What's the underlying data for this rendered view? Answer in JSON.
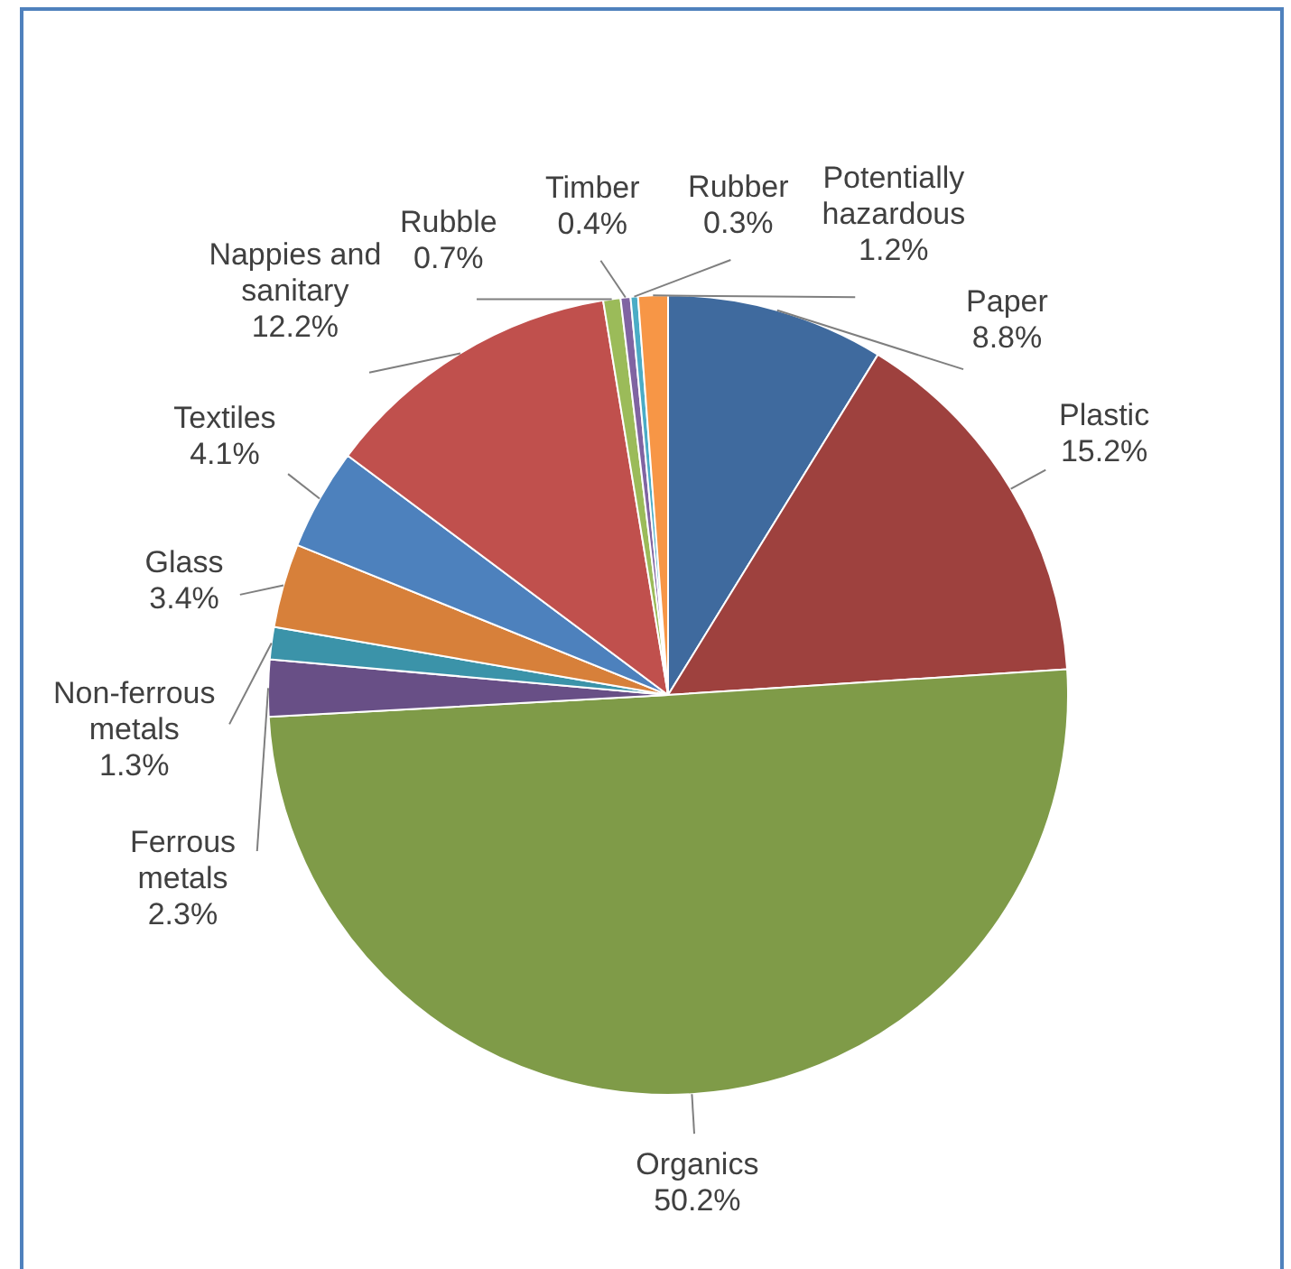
{
  "chart_data": {
    "type": "pie",
    "categories": [
      "Paper",
      "Plastic",
      "Organics",
      "Ferrous metals",
      "Non-ferrous metals",
      "Glass",
      "Textiles",
      "Nappies and sanitary",
      "Rubble",
      "Timber",
      "Rubber",
      "Potentially hazardous"
    ],
    "values": [
      8.8,
      15.2,
      50.2,
      2.3,
      1.3,
      3.4,
      4.1,
      12.2,
      0.7,
      0.4,
      0.3,
      1.2
    ],
    "colors": [
      "#3f6a9e",
      "#9e413e",
      "#7f9b48",
      "#684f86",
      "#3b93a9",
      "#d7803a",
      "#4d81bd",
      "#c0504d",
      "#9bbb59",
      "#8064a2",
      "#4bacc6",
      "#f79646"
    ],
    "value_labels": [
      "8.8%",
      "15.2%",
      "50.2%",
      "2.3%",
      "1.3%",
      "3.4%",
      "4.1%",
      "12.2%",
      "0.7%",
      "0.4%",
      "0.3%",
      "1.2%"
    ],
    "legend": false
  }
}
